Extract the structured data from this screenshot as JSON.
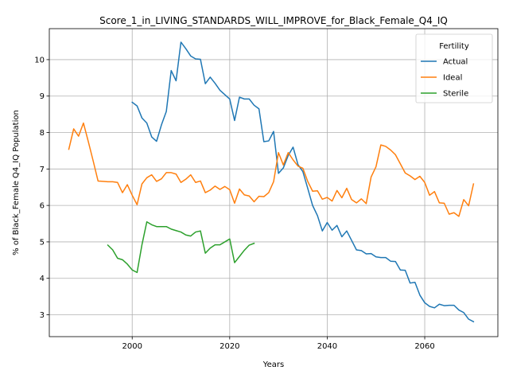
{
  "chart_data": {
    "type": "line",
    "title": "Score_1_in_LIVING_STANDARDS_WILL_IMPROVE_for_Black_Female_Q4_IQ",
    "xlabel": "Years",
    "ylabel": "% of Black_Female Q4_IQ Population",
    "xlim": [
      1983,
      2075
    ],
    "ylim": [
      2.4,
      10.85
    ],
    "x_ticks": [
      2000,
      2020,
      2040,
      2060
    ],
    "y_ticks": [
      3,
      4,
      5,
      6,
      7,
      8,
      9,
      10
    ],
    "grid": true,
    "legend": {
      "title": "Fertility",
      "placement": "top-right"
    },
    "series": [
      {
        "name": "Actual",
        "color": "#1f77b4",
        "x": [
          2000,
          2001,
          2002,
          2003,
          2004,
          2005,
          2006,
          2007,
          2008,
          2009,
          2010,
          2011,
          2012,
          2013,
          2014,
          2015,
          2016,
          2017,
          2018,
          2019,
          2020,
          2021,
          2022,
          2023,
          2024,
          2025,
          2026,
          2027,
          2028,
          2029,
          2030,
          2031,
          2032,
          2033,
          2034,
          2035,
          2036,
          2037,
          2038,
          2039,
          2040,
          2041,
          2042,
          2043,
          2044,
          2045,
          2046,
          2047,
          2048,
          2049,
          2050,
          2051,
          2052,
          2053,
          2054,
          2055,
          2056,
          2057,
          2058,
          2059,
          2060,
          2061,
          2062,
          2063,
          2064,
          2065,
          2066,
          2067,
          2068,
          2069,
          2070
        ],
        "values": [
          8.83,
          8.73,
          8.4,
          8.26,
          7.88,
          7.76,
          8.21,
          8.58,
          9.7,
          9.42,
          10.48,
          10.3,
          10.1,
          10.02,
          10.01,
          9.34,
          9.52,
          9.35,
          9.16,
          9.04,
          8.92,
          8.33,
          8.97,
          8.92,
          8.92,
          8.75,
          8.65,
          7.75,
          7.77,
          8.03,
          6.88,
          7.03,
          7.37,
          7.6,
          7.12,
          6.93,
          6.47,
          6.0,
          5.72,
          5.3,
          5.53,
          5.32,
          5.45,
          5.14,
          5.3,
          5.04,
          4.78,
          4.76,
          4.67,
          4.68,
          4.59,
          4.57,
          4.57,
          4.47,
          4.46,
          4.23,
          4.22,
          3.87,
          3.89,
          3.54,
          3.33,
          3.23,
          3.19,
          3.29,
          3.25,
          3.26,
          3.26,
          3.13,
          3.06,
          2.88,
          2.81
        ]
      },
      {
        "name": "Ideal",
        "color": "#ff7f0e",
        "x": [
          1987,
          1988,
          1989,
          1990,
          1991,
          1992,
          1993,
          1994,
          1995,
          1996,
          1997,
          1998,
          1999,
          2000,
          2001,
          2002,
          2003,
          2004,
          2005,
          2006,
          2007,
          2008,
          2009,
          2010,
          2011,
          2012,
          2013,
          2014,
          2015,
          2016,
          2017,
          2018,
          2019,
          2020,
          2021,
          2022,
          2023,
          2024,
          2025,
          2026,
          2027,
          2028,
          2029,
          2030,
          2031,
          2032,
          2033,
          2034,
          2035,
          2036,
          2037,
          2038,
          2039,
          2040,
          2041,
          2042,
          2043,
          2044,
          2045,
          2046,
          2047,
          2048,
          2049,
          2050,
          2051,
          2052,
          2053,
          2054,
          2055,
          2056,
          2057,
          2058,
          2059,
          2060,
          2061,
          2062,
          2063,
          2064,
          2065,
          2066,
          2067,
          2068,
          2069,
          2070
        ],
        "values": [
          7.54,
          8.1,
          7.9,
          8.26,
          7.75,
          7.22,
          6.67,
          6.66,
          6.65,
          6.65,
          6.63,
          6.35,
          6.57,
          6.28,
          6.02,
          6.59,
          6.76,
          6.84,
          6.66,
          6.73,
          6.9,
          6.9,
          6.86,
          6.63,
          6.72,
          6.84,
          6.63,
          6.67,
          6.35,
          6.42,
          6.53,
          6.44,
          6.52,
          6.43,
          6.06,
          6.45,
          6.29,
          6.26,
          6.1,
          6.25,
          6.24,
          6.35,
          6.65,
          7.45,
          7.11,
          7.45,
          7.25,
          7.08,
          7.02,
          6.66,
          6.39,
          6.4,
          6.17,
          6.22,
          6.12,
          6.41,
          6.21,
          6.47,
          6.16,
          6.07,
          6.18,
          6.05,
          6.78,
          7.06,
          7.66,
          7.62,
          7.52,
          7.39,
          7.14,
          6.89,
          6.81,
          6.71,
          6.8,
          6.63,
          6.28,
          6.38,
          6.07,
          6.06,
          5.76,
          5.8,
          5.7,
          6.16,
          5.99,
          6.59
        ]
      },
      {
        "name": "Sterile",
        "color": "#2ca02c",
        "x": [
          1995,
          1996,
          1997,
          1998,
          1999,
          2000,
          2001,
          2002,
          2003,
          2004,
          2005,
          2006,
          2007,
          2008,
          2009,
          2010,
          2011,
          2012,
          2013,
          2014,
          2015,
          2016,
          2017,
          2018,
          2019,
          2020,
          2021,
          2022,
          2023,
          2024,
          2025
        ],
        "values": [
          4.91,
          4.78,
          4.55,
          4.51,
          4.39,
          4.23,
          4.16,
          4.92,
          5.55,
          5.47,
          5.42,
          5.42,
          5.42,
          5.35,
          5.31,
          5.27,
          5.19,
          5.16,
          5.27,
          5.3,
          4.69,
          4.83,
          4.92,
          4.92,
          5.0,
          5.08,
          4.43,
          4.6,
          4.77,
          4.91,
          4.96
        ]
      }
    ]
  }
}
